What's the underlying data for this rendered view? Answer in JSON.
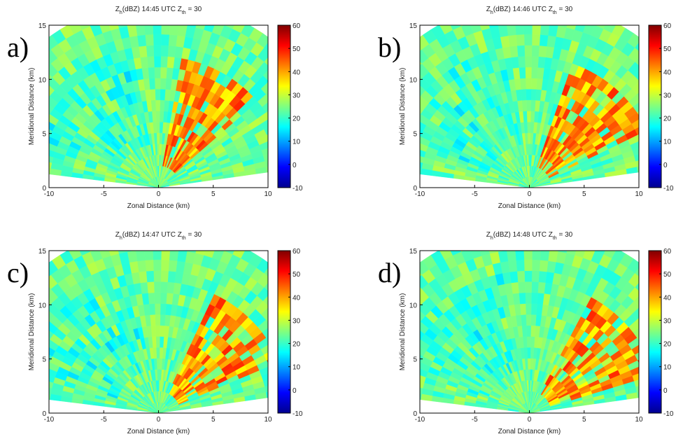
{
  "chart_data": [
    {
      "type": "heatmap",
      "panel_label": "a)",
      "title_parts": [
        {
          "text": "Z"
        },
        {
          "text": "h",
          "sub": true
        },
        {
          "text": "(dBZ)  14:45 UTC  Z"
        },
        {
          "text": "th",
          "sub": true
        },
        {
          "text": " = 30"
        }
      ],
      "x_label": "Zonal Distance (km)",
      "y_label": "Meridional Distance (km)",
      "xlim": [
        -10,
        10
      ],
      "xticks": [
        -10,
        -5,
        0,
        5,
        10
      ],
      "ylim": [
        0,
        15
      ],
      "yticks": [
        0,
        5,
        10,
        15
      ],
      "colorbar": {
        "lim": [
          -10,
          60
        ],
        "ticks": [
          -10,
          0,
          10,
          20,
          30,
          40,
          50,
          60
        ],
        "colormap": "jet"
      }
    },
    {
      "type": "heatmap",
      "panel_label": "b)",
      "title_parts": [
        {
          "text": "Z"
        },
        {
          "text": "h",
          "sub": true
        },
        {
          "text": "(dBZ)  14:46 UTC  Z"
        },
        {
          "text": "th",
          "sub": true
        },
        {
          "text": " = 30"
        }
      ],
      "x_label": "Zonal Distance (km)",
      "y_label": "Meridional Distance (km)",
      "xlim": [
        -10,
        10
      ],
      "xticks": [
        -10,
        -5,
        0,
        5,
        10
      ],
      "ylim": [
        0,
        15
      ],
      "yticks": [
        0,
        5,
        10,
        15
      ],
      "colorbar": {
        "lim": [
          -10,
          60
        ],
        "ticks": [
          -10,
          0,
          10,
          20,
          30,
          40,
          50,
          60
        ],
        "colormap": "jet"
      }
    },
    {
      "type": "heatmap",
      "panel_label": "c)",
      "title_parts": [
        {
          "text": "Z"
        },
        {
          "text": "h",
          "sub": true
        },
        {
          "text": "(dBZ)  14:47 UTC  Z"
        },
        {
          "text": "th",
          "sub": true
        },
        {
          "text": " = 30"
        }
      ],
      "x_label": "Zonal Distance (km)",
      "y_label": "Meridional Distance (km)",
      "xlim": [
        -10,
        10
      ],
      "xticks": [
        -10,
        -5,
        0,
        5,
        10
      ],
      "ylim": [
        0,
        15
      ],
      "yticks": [
        0,
        5,
        10,
        15
      ],
      "colorbar": {
        "lim": [
          -10,
          60
        ],
        "ticks": [
          -10,
          0,
          10,
          20,
          30,
          40,
          50,
          60
        ],
        "colormap": "jet"
      }
    },
    {
      "type": "heatmap",
      "panel_label": "d)",
      "title_parts": [
        {
          "text": "Z"
        },
        {
          "text": "h",
          "sub": true
        },
        {
          "text": "(dBZ)  14:48 UTC  Z"
        },
        {
          "text": "th",
          "sub": true
        },
        {
          "text": " = 30"
        }
      ],
      "x_label": "Zonal Distance (km)",
      "y_label": "Meridional Distance (km)",
      "xlim": [
        -10,
        10
      ],
      "xticks": [
        -10,
        -5,
        0,
        5,
        10
      ],
      "ylim": [
        0,
        15
      ],
      "yticks": [
        0,
        5,
        10,
        15
      ],
      "colorbar": {
        "lim": [
          -10,
          60
        ],
        "ticks": [
          -10,
          0,
          10,
          20,
          30,
          40,
          50,
          60
        ],
        "colormap": "jet"
      }
    }
  ]
}
